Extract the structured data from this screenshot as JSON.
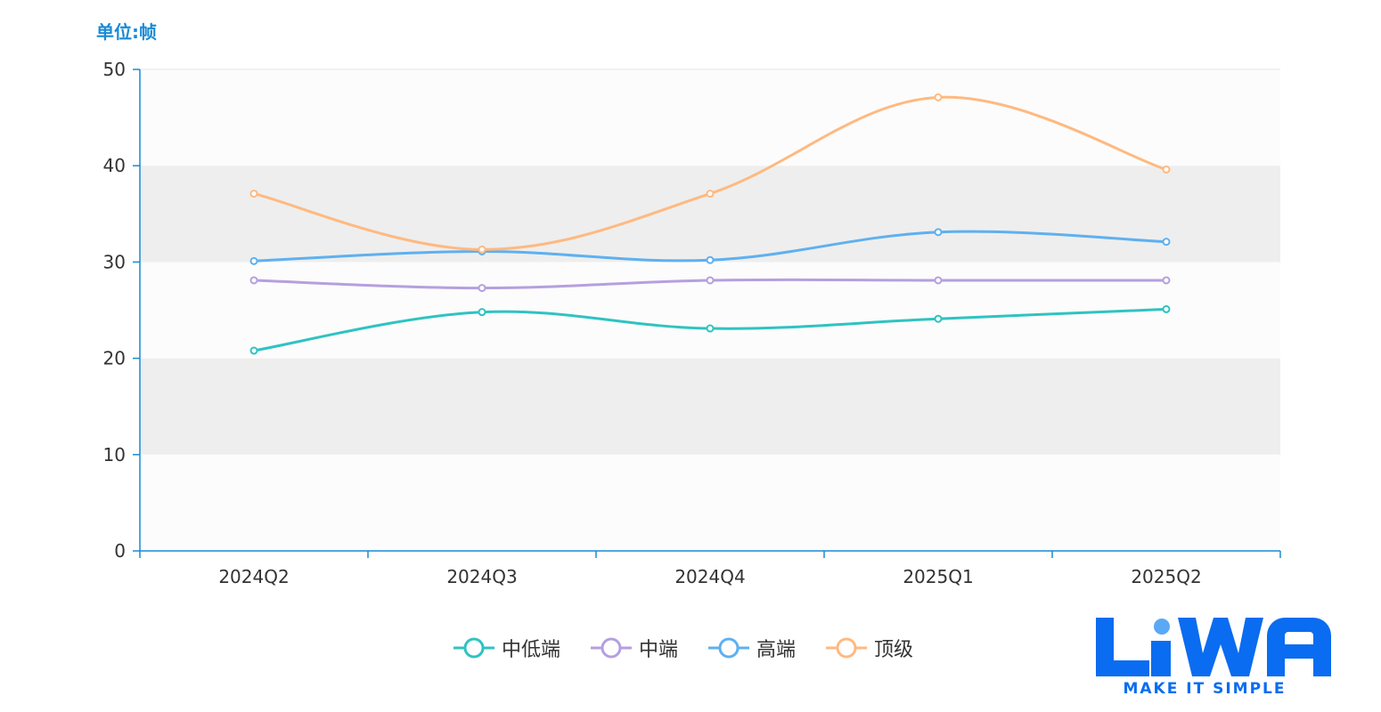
{
  "unit_label": "单位:帧",
  "colors": {
    "axis": "#1a8ad4",
    "band_dark": "#eeeeee",
    "band_light": "#fcfcfc",
    "tick_text": "#333333",
    "brand": "#0a6cf0"
  },
  "chart_data": {
    "type": "line",
    "smooth": true,
    "categories": [
      "2024Q2",
      "2024Q3",
      "2024Q4",
      "2025Q1",
      "2025Q2"
    ],
    "ylim": [
      0,
      50
    ],
    "yticks": [
      0,
      10,
      20,
      30,
      40,
      50
    ],
    "grid": "alternating-bands",
    "legend_position": "bottom-center",
    "series": [
      {
        "name": "中低端",
        "color": "#2ec3c1",
        "values": [
          20.8,
          24.8,
          23.1,
          24.1,
          25.1
        ]
      },
      {
        "name": "中端",
        "color": "#b59fdf",
        "values": [
          28.1,
          27.3,
          28.1,
          28.1,
          28.1
        ]
      },
      {
        "name": "高端",
        "color": "#5fb0ef",
        "values": [
          30.1,
          31.1,
          30.2,
          33.1,
          32.1
        ]
      },
      {
        "name": "顶级",
        "color": "#ffb980",
        "values": [
          37.1,
          31.3,
          37.1,
          47.1,
          39.6
        ]
      }
    ]
  },
  "logo": {
    "wordmark": "LiWA",
    "tagline": "MAKE IT SIMPLE",
    "icon": "liwa-logo"
  }
}
